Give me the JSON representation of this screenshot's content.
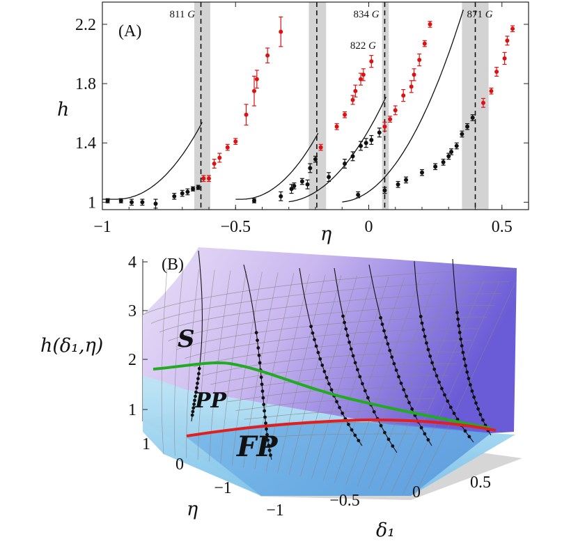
{
  "chart_data": [
    {
      "type": "scatter",
      "panel_label": "(A)",
      "xlabel": "η",
      "ylabel": "h",
      "xlim": [
        -1.0,
        0.6
      ],
      "ylim": [
        0.95,
        2.35
      ],
      "xticks": [
        -1,
        -0.5,
        0,
        0.5
      ],
      "xtick_labels": [
        "−1",
        "−0.5",
        "0",
        "0.5"
      ],
      "yticks": [
        1,
        1.4,
        1.8,
        2.2
      ],
      "ytick_labels": [
        "1",
        "1.4",
        "1.8",
        "2.2"
      ],
      "thresholds": [
        {
          "label": "811",
          "unit": "G",
          "eta": -0.63,
          "band": [
            -0.655,
            -0.595
          ]
        },
        {
          "label": "822",
          "unit": "G",
          "eta": -0.195,
          "band": [
            -0.225,
            -0.16
          ]
        },
        {
          "label": "834",
          "unit": "G",
          "eta": 0.06,
          "band": [
            0.05,
            0.075
          ]
        },
        {
          "label": "871",
          "unit": "G",
          "eta": 0.4,
          "band": [
            0.35,
            0.45
          ]
        }
      ],
      "series": [
        {
          "name": "811 G",
          "color_below": "#111111",
          "color_above": "#dd1111",
          "fit": {
            "x0": -1.0,
            "x1": -0.63,
            "a": -0.95,
            "b": 0.02,
            "k": 5.5
          },
          "points": [
            [
              -0.98,
              1.01,
              0.01
            ],
            [
              -0.93,
              1.01,
              0.01
            ],
            [
              -0.89,
              1.0,
              0.02
            ],
            [
              -0.85,
              1.0,
              0.02
            ],
            [
              -0.8,
              0.99,
              0.03
            ],
            [
              -0.73,
              1.04,
              0.02
            ],
            [
              -0.7,
              1.06,
              0.02
            ],
            [
              -0.68,
              1.07,
              0.02
            ],
            [
              -0.66,
              1.09,
              0.01
            ],
            [
              -0.64,
              1.1,
              0.01
            ],
            [
              -0.62,
              1.16,
              0.02
            ],
            [
              -0.6,
              1.16,
              0.02
            ],
            [
              -0.58,
              1.26,
              0.03
            ],
            [
              -0.56,
              1.3,
              0.03
            ],
            [
              -0.53,
              1.37,
              0.02
            ],
            [
              -0.5,
              1.41,
              0.02
            ],
            [
              -0.46,
              1.59,
              0.07
            ],
            [
              -0.43,
              1.75,
              0.1
            ],
            [
              -0.42,
              1.83,
              0.06
            ],
            [
              -0.38,
              1.99,
              0.05
            ],
            [
              -0.33,
              2.15,
              0.1
            ]
          ]
        },
        {
          "name": "822 G",
          "color_below": "#111111",
          "color_above": "#dd1111",
          "fit": {
            "x0": -0.5,
            "x1": -0.195,
            "a": -0.48,
            "b": 0.02,
            "k": 6.0
          },
          "points": [
            [
              -0.43,
              1.01,
              0.01
            ],
            [
              -0.33,
              1.04,
              0.03
            ],
            [
              -0.29,
              1.09,
              0.03
            ],
            [
              -0.28,
              1.11,
              0.02
            ],
            [
              -0.25,
              1.14,
              0.02
            ],
            [
              -0.22,
              1.23,
              0.03
            ],
            [
              -0.2,
              1.29,
              0.02
            ],
            [
              -0.18,
              1.37,
              0.02
            ],
            [
              -0.12,
              1.51,
              0.02
            ],
            [
              -0.09,
              1.59,
              0.02
            ],
            [
              -0.06,
              1.69,
              0.03
            ],
            [
              -0.05,
              1.75,
              0.04
            ],
            [
              -0.03,
              1.83,
              0.04
            ],
            [
              -0.02,
              1.86,
              0.04
            ],
            [
              0.01,
              1.95,
              0.04
            ]
          ]
        },
        {
          "name": "834 G",
          "color_below": "#111111",
          "color_above": "#dd1111",
          "fit": {
            "x0": -0.3,
            "x1": 0.06,
            "a": -0.33,
            "b": 0.0,
            "k": 5.0
          },
          "points": [
            [
              -0.23,
              1.12,
              0.03
            ],
            [
              -0.15,
              1.17,
              0.03
            ],
            [
              -0.09,
              1.26,
              0.03
            ],
            [
              -0.06,
              1.31,
              0.03
            ],
            [
              -0.03,
              1.38,
              0.03
            ],
            [
              -0.01,
              1.4,
              0.03
            ],
            [
              0.01,
              1.42,
              0.03
            ],
            [
              0.04,
              1.47,
              0.03
            ],
            [
              0.06,
              1.51,
              0.03
            ],
            [
              0.08,
              1.56,
              0.02
            ],
            [
              0.1,
              1.62,
              0.03
            ],
            [
              0.13,
              1.72,
              0.04
            ],
            [
              0.16,
              1.78,
              0.04
            ],
            [
              0.17,
              1.86,
              0.04
            ],
            [
              0.19,
              1.96,
              0.04
            ],
            [
              0.21,
              2.07,
              0.02
            ],
            [
              0.23,
              2.2,
              0.02
            ]
          ]
        },
        {
          "name": "871 G",
          "color_below": "#111111",
          "color_above": "#dd1111",
          "fit": {
            "x0": -0.1,
            "x1": 0.36,
            "a": -0.12,
            "b": 0.0,
            "k": 6.2
          },
          "points": [
            [
              -0.04,
              1.05,
              0.02
            ],
            [
              0.06,
              1.08,
              0.02
            ],
            [
              0.11,
              1.12,
              0.02
            ],
            [
              0.14,
              1.15,
              0.02
            ],
            [
              0.2,
              1.2,
              0.02
            ],
            [
              0.25,
              1.24,
              0.02
            ],
            [
              0.28,
              1.27,
              0.02
            ],
            [
              0.3,
              1.31,
              0.02
            ],
            [
              0.31,
              1.34,
              0.02
            ],
            [
              0.33,
              1.38,
              0.02
            ],
            [
              0.35,
              1.46,
              0.02
            ],
            [
              0.37,
              1.51,
              0.02
            ],
            [
              0.39,
              1.57,
              0.02
            ],
            [
              0.43,
              1.67,
              0.03
            ],
            [
              0.46,
              1.75,
              0.02
            ],
            [
              0.48,
              1.88,
              0.03
            ],
            [
              0.51,
              1.97,
              0.04
            ],
            [
              0.52,
              2.09,
              0.03
            ],
            [
              0.54,
              2.17,
              0.02
            ]
          ]
        }
      ]
    },
    {
      "type": "surface",
      "panel_label": "(B)",
      "zlabel": "h(δ₁,η)",
      "xlabel": "δ₁",
      "ylabel": "η",
      "xticks": [
        -1,
        -0.5,
        0,
        0.5
      ],
      "xtick_labels": [
        "−1",
        "−0.5",
        "0",
        "0.5"
      ],
      "yticks": [
        1,
        0,
        -1
      ],
      "ytick_labels": [
        "1",
        "0",
        "−1"
      ],
      "zticks": [
        1,
        2,
        3,
        4
      ],
      "ztick_labels": [
        "1",
        "2",
        "3",
        "4"
      ],
      "regions": [
        {
          "label": "S",
          "size": 34
        },
        {
          "label": "PP",
          "size": 30
        },
        {
          "label": "FP",
          "size": 40
        }
      ],
      "boundaries": [
        {
          "name": "S-PP boundary",
          "color": "#22aa22"
        },
        {
          "name": "PP-FP boundary",
          "color": "#e02020"
        }
      ]
    }
  ]
}
